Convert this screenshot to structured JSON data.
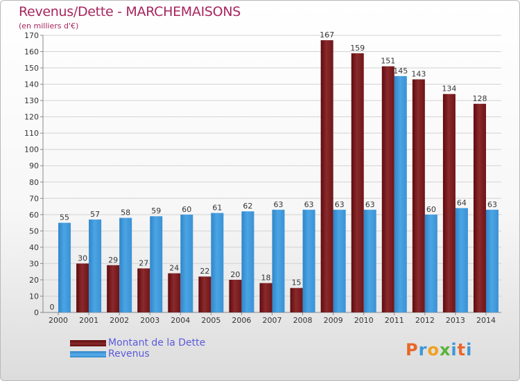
{
  "header": {
    "title": "Revenus/Dette - MARCHEMAISONS",
    "subtitle": "(en milliers d'€)"
  },
  "colors": {
    "title": "#a7255f",
    "debt": "#7a1a1f",
    "revenue": "#3f97d8",
    "legend_text": "#5a5adc"
  },
  "legend": {
    "items": [
      {
        "label": "Montant de la Dette",
        "color": "#6b0f14"
      },
      {
        "label": "Revenus",
        "color": "#3f97d8"
      }
    ]
  },
  "logo": {
    "text": "Proxiti",
    "colors": [
      "#e8672a",
      "#3f97d8",
      "#f0a020",
      "#58b33a",
      "#3f97d8",
      "#e8672a",
      "#3f97d8"
    ]
  },
  "chart_data": {
    "type": "bar",
    "categories": [
      "2000",
      "2001",
      "2002",
      "2003",
      "2004",
      "2005",
      "2006",
      "2007",
      "2008",
      "2009",
      "2010",
      "2011",
      "2012",
      "2013",
      "2014"
    ],
    "series": [
      {
        "name": "Montant de la Dette",
        "values": [
          0,
          30,
          29,
          27,
          24,
          22,
          20,
          18,
          15,
          167,
          159,
          151,
          143,
          134,
          128
        ]
      },
      {
        "name": "Revenus",
        "values": [
          55,
          57,
          58,
          59,
          60,
          61,
          62,
          63,
          63,
          63,
          63,
          145,
          60,
          64,
          63
        ]
      }
    ],
    "ylim": [
      0,
      170
    ],
    "yticks": [
      0,
      10,
      20,
      30,
      40,
      50,
      60,
      70,
      80,
      90,
      100,
      110,
      120,
      130,
      140,
      150,
      160,
      170
    ],
    "grid": true,
    "legend_position": "bottom-left"
  }
}
